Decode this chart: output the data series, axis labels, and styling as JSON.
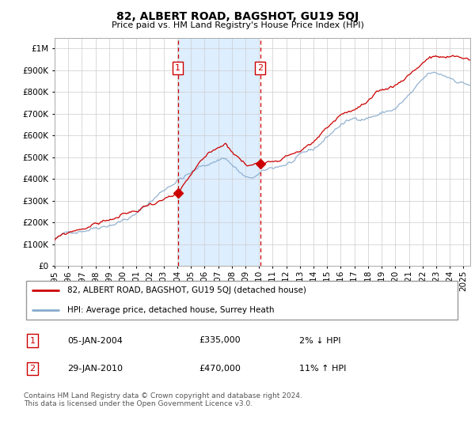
{
  "title": "82, ALBERT ROAD, BAGSHOT, GU19 5QJ",
  "subtitle": "Price paid vs. HM Land Registry's House Price Index (HPI)",
  "legend_line1": "82, ALBERT ROAD, BAGSHOT, GU19 5QJ (detached house)",
  "legend_line2": "HPI: Average price, detached house, Surrey Heath",
  "transaction1_date": "05-JAN-2004",
  "transaction1_price": "£335,000",
  "transaction1_hpi": "2% ↓ HPI",
  "transaction1_year": 2004.04,
  "transaction1_value": 335000,
  "transaction2_date": "29-JAN-2010",
  "transaction2_price": "£470,000",
  "transaction2_hpi": "11% ↑ HPI",
  "transaction2_year": 2010.08,
  "transaction2_value": 470000,
  "footer": "Contains HM Land Registry data © Crown copyright and database right 2024.\nThis data is licensed under the Open Government Licence v3.0.",
  "red_color": "#cc0000",
  "blue_color": "#88aacc",
  "shade_color": "#ddeeff",
  "grid_color": "#cccccc",
  "marker_box_color": "#cc0000",
  "ylim_max": 1050000,
  "xlim_start": 1995.0,
  "xlim_end": 2025.5
}
